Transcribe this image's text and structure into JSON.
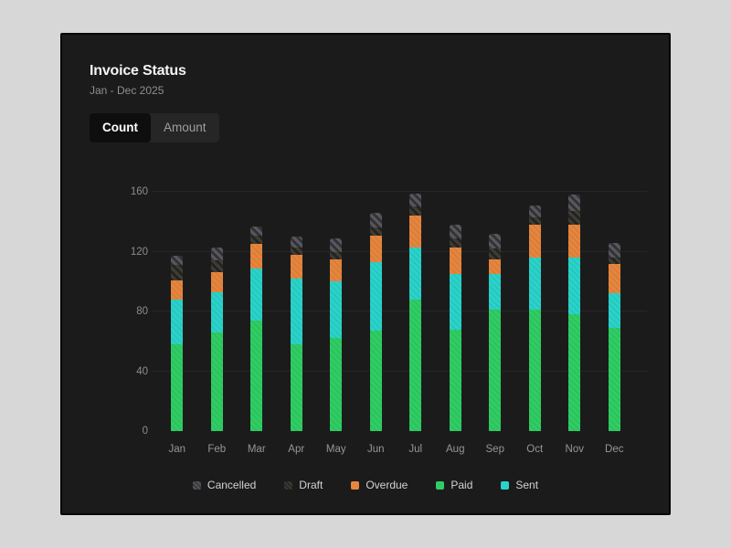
{
  "header": {
    "title": "Invoice Status",
    "subtitle": "Jan - Dec 2025"
  },
  "tabs": [
    {
      "label": "Count",
      "active": true
    },
    {
      "label": "Amount",
      "active": false
    }
  ],
  "colors": {
    "desktop_bg": "#d7d7d7",
    "card_bg": "#1b1b1b",
    "active_tab_bg": "#0e0e0e",
    "tab_bar_bg": "#262626"
  },
  "chart_data": {
    "type": "bar",
    "stacked": true,
    "title": "Invoice Status",
    "subtitle": "Jan - Dec 2025",
    "categories": [
      "Jan",
      "Feb",
      "Mar",
      "Apr",
      "May",
      "Jun",
      "Jul",
      "Aug",
      "Sep",
      "Oct",
      "Nov",
      "Dec"
    ],
    "series": [
      {
        "name": "Cancelled",
        "color": "#55555c",
        "hatch": true,
        "values": [
          6,
          9,
          6,
          7,
          9,
          10,
          9,
          9,
          10,
          8,
          11,
          10
        ]
      },
      {
        "name": "Draft",
        "color": "#3d3a34",
        "hatch": true,
        "values": [
          10,
          8,
          6,
          5,
          5,
          5,
          6,
          6,
          7,
          5,
          9,
          4
        ]
      },
      {
        "name": "Overdue",
        "color": "#e6853d",
        "hatch": false,
        "values": [
          13,
          13,
          16,
          16,
          15,
          18,
          21,
          18,
          10,
          22,
          22,
          20
        ]
      },
      {
        "name": "Paid",
        "color": "#2fcd64",
        "hatch": false,
        "values": [
          58,
          66,
          74,
          58,
          62,
          67,
          88,
          68,
          81,
          81,
          78,
          69
        ]
      },
      {
        "name": "Sent",
        "color": "#2ad3c9",
        "hatch": false,
        "values": [
          30,
          27,
          35,
          44,
          38,
          46,
          35,
          37,
          24,
          35,
          38,
          23
        ]
      }
    ],
    "stack_order_bottom_to_top": [
      "Paid",
      "Sent",
      "Overdue",
      "Draft",
      "Cancelled"
    ],
    "totals": [
      117,
      123,
      137,
      130,
      129,
      146,
      159,
      138,
      132,
      151,
      158,
      126
    ],
    "ylim": [
      0,
      160
    ],
    "yticks": [
      0,
      40,
      80,
      120,
      160
    ],
    "grid": true,
    "legend_position": "bottom"
  }
}
